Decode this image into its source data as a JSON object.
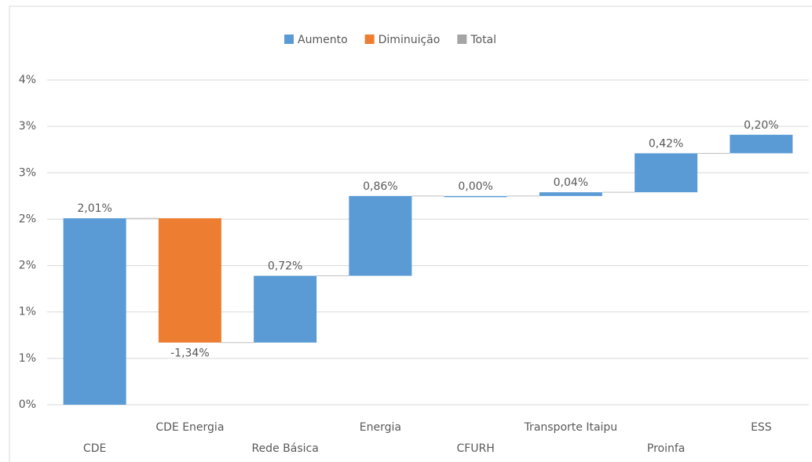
{
  "chart_data": {
    "type": "waterfall",
    "categories": [
      "CDE",
      "CDE Energia",
      "Rede Básica",
      "Energia",
      "CFURH",
      "Transporte Itaipu",
      "Proinfa",
      "ESS"
    ],
    "values": [
      2.01,
      -1.34,
      0.72,
      0.86,
      0.0,
      0.04,
      0.42,
      0.2
    ],
    "value_labels": [
      "2,01%",
      "-1,34%",
      "0,72%",
      "0,86%",
      "0,00%",
      "0,04%",
      "0,42%",
      "0,20%"
    ],
    "legend": [
      {
        "name": "Aumento",
        "color": "#5b9bd5"
      },
      {
        "name": "Diminuição",
        "color": "#ed7d31"
      },
      {
        "name": "Total",
        "color": "#a5a5a5"
      }
    ],
    "ylim": [
      0,
      3.5
    ],
    "yticks": [
      {
        "value": 0,
        "label": "0%"
      },
      {
        "value": 0.5,
        "label": "1%"
      },
      {
        "value": 1,
        "label": "1%"
      },
      {
        "value": 1.5,
        "label": "2%"
      },
      {
        "value": 2,
        "label": "2%"
      },
      {
        "value": 2.5,
        "label": "3%"
      },
      {
        "value": 3,
        "label": "3%"
      },
      {
        "value": 3.5,
        "label": "4%"
      }
    ],
    "grid": true
  }
}
